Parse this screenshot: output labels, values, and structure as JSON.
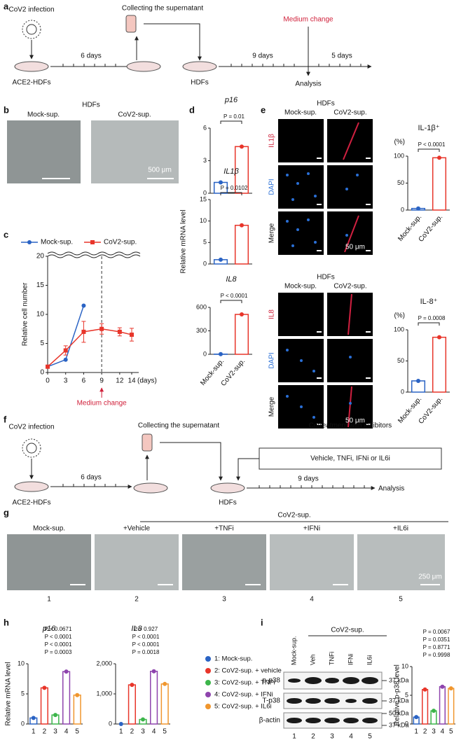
{
  "chart_data": [
    {
      "type": "line",
      "ylabel": "Relative cell number",
      "xlabel": "(days)",
      "annotation": {
        "text": "Medium change",
        "x": 9
      },
      "x": [
        0,
        3,
        6,
        9,
        12,
        14
      ],
      "xlim": [
        0,
        14
      ],
      "xticks": [
        0,
        3,
        6,
        9,
        12,
        14
      ],
      "ylim": [
        0,
        20
      ],
      "yticks": [
        0,
        5,
        10,
        15,
        20
      ],
      "series": [
        {
          "name": "Mock-sup.",
          "color": "#2a63c4",
          "values": [
            1,
            2.2,
            11.5,
            null,
            null,
            null
          ]
        },
        {
          "name": "CoV2-sup.",
          "color": "#e8352a",
          "values": [
            1,
            3.8,
            7,
            7.5,
            7,
            6.5
          ],
          "errors": [
            0,
            0.8,
            1.8,
            0.9,
            0.7,
            1.1
          ]
        }
      ]
    },
    {
      "type": "bar",
      "title": "p16",
      "pvalues": [
        "P = 0.01"
      ],
      "values": [
        1,
        4.3
      ],
      "colors": [
        "#2a63c4",
        "#e8352a"
      ],
      "ylim": [
        0,
        6
      ],
      "yticks": [
        0,
        3,
        6
      ]
    },
    {
      "type": "bar",
      "title": "IL1β",
      "pvalues": [
        "P = 0.0102"
      ],
      "values": [
        1,
        9
      ],
      "colors": [
        "#2a63c4",
        "#e8352a"
      ],
      "ylim": [
        0,
        15
      ],
      "yticks": [
        0,
        5,
        10,
        15
      ]
    },
    {
      "type": "bar",
      "title": "IL8",
      "pvalues": [
        "P < 0.0001"
      ],
      "categories": [
        "Mock-sup.",
        "CoV2-sup."
      ],
      "values": [
        2,
        510
      ],
      "colors": [
        "#2a63c4",
        "#e8352a"
      ],
      "ylim": [
        0,
        600
      ],
      "yticks": [
        0,
        300,
        600
      ]
    },
    {
      "type": "bar",
      "title": "IL-1β⁺",
      "unit": "(%)",
      "pvalues": [
        "P < 0.0001"
      ],
      "categories": [
        "Mock-sup.",
        "CoV2-sup."
      ],
      "values": [
        3,
        97
      ],
      "colors": [
        "#2a63c4",
        "#e8352a"
      ],
      "ylim": [
        0,
        100
      ],
      "yticks": [
        0,
        50,
        100
      ]
    },
    {
      "type": "bar",
      "title": "IL-8⁺",
      "unit": "(%)",
      "pvalues": [
        "P = 0.0008"
      ],
      "categories": [
        "Mock-sup.",
        "CoV2-sup."
      ],
      "values": [
        18,
        88
      ],
      "colors": [
        "#2a63c4",
        "#e8352a"
      ],
      "ylim": [
        0,
        100
      ],
      "yticks": [
        0,
        50,
        100
      ]
    },
    {
      "type": "bar",
      "title": "p16",
      "ylabel": "Relative mRNA level",
      "pvalues": [
        "P = 0.0003",
        "P < 0.0001",
        "P < 0.0001",
        "P = 0.0671"
      ],
      "categories": [
        "1",
        "2",
        "3",
        "4",
        "5"
      ],
      "values": [
        1,
        6,
        1.5,
        8.7,
        4.8
      ],
      "colors": [
        "#2a63c4",
        "#e8352a",
        "#3cb54a",
        "#8e44ad",
        "#f0962e"
      ],
      "ylim": [
        0,
        10
      ],
      "yticks": [
        0,
        5,
        10
      ]
    },
    {
      "type": "bar",
      "title": "IL8",
      "pvalues": [
        "P = 0.0018",
        "P < 0.0001",
        "P < 0.0001",
        "P = 0.927"
      ],
      "categories": [
        "1",
        "2",
        "3",
        "4",
        "5"
      ],
      "values": [
        0,
        1300,
        150,
        1750,
        1330
      ],
      "colors": [
        "#2a63c4",
        "#e8352a",
        "#3cb54a",
        "#8e44ad",
        "#f0962e"
      ],
      "ylim": [
        0,
        2000
      ],
      "yticks": [
        0,
        {
          "value": 1000,
          "label": "1,000"
        },
        {
          "value": 2000,
          "label": "2,000"
        }
      ]
    },
    {
      "type": "bar",
      "ylabel": "Relative p-p38 level",
      "pvalues": [
        "P = 0.9998",
        "P = 0.8771",
        "P = 0.0351",
        "P = 0.0067"
      ],
      "categories": [
        "1",
        "2",
        "3",
        "4",
        "5"
      ],
      "values": [
        1.2,
        6,
        2.3,
        6.5,
        6.2
      ],
      "colors": [
        "#2a63c4",
        "#e8352a",
        "#3cb54a",
        "#8e44ad",
        "#f0962e"
      ],
      "ylim": [
        0,
        10
      ],
      "yticks": [
        0,
        5,
        10
      ]
    }
  ],
  "panels": {
    "a": {
      "label": "a",
      "infection": "CoV2 infection",
      "collecting": "Collecting the supernatant",
      "medium_change": "Medium change",
      "days_1": "6 days",
      "days_2": "9 days",
      "days_3": "5 days",
      "source_cells": "ACE2-HDFs",
      "target_cells": "HDFs",
      "analysis": "Analysis"
    },
    "b": {
      "label": "b",
      "title": "HDFs",
      "left": "Mock-sup.",
      "right": "CoV2-sup.",
      "scale_bar": "500 μm"
    },
    "c": {
      "label": "c"
    },
    "d": {
      "label": "d",
      "ylabel": "Relative mRNA level"
    },
    "e": {
      "label": "e",
      "top": {
        "title": "HDFs",
        "left": "Mock-sup.",
        "right": "CoV2-sup.",
        "rows": [
          "IL1β",
          "DAPI",
          "Merge"
        ],
        "scale_bar": "50 μm"
      },
      "bottom": {
        "title": "HDFs",
        "left": "Mock-sup.",
        "right": "CoV2-sup.",
        "rows": [
          "IL8",
          "DAPI",
          "Merge"
        ],
        "scale_bar": "50 μm"
      }
    },
    "f": {
      "label": "f",
      "infection": "CoV2 infection",
      "collecting": "Collecting the supernatant",
      "cotreatment": "Cotreatment with inhibitors",
      "inhibitors": "Vehicle, TNFi, IFNi or IL6i",
      "days_1": "6 days",
      "days_2": "9 days",
      "source_cells": "ACE2-HDFs",
      "target_cells": "HDFs",
      "analysis": "Analysis"
    },
    "g": {
      "label": "g",
      "group": "CoV2-sup.",
      "conditions": [
        "Mock-sup.",
        "+Vehicle",
        "+TNFi",
        "+IFNi",
        "+IL6i"
      ],
      "numbers": [
        "1",
        "2",
        "3",
        "4",
        "5"
      ],
      "scale_bar": "250 μm"
    },
    "h": {
      "label": "h",
      "legend": [
        {
          "name": "1: Mock-sup.",
          "color": "#2a63c4"
        },
        {
          "name": "2: CoV2-sup. + vehicle",
          "color": "#e8352a"
        },
        {
          "name": "3: CoV2-sup. + TNFi",
          "color": "#3cb54a"
        },
        {
          "name": "4: CoV2-sup. + IFNi",
          "color": "#8e44ad"
        },
        {
          "name": "5: CoV2-sup. + IL6i",
          "color": "#f0962e"
        }
      ]
    },
    "i": {
      "label": "i",
      "group": "CoV2-sup.",
      "lanes": [
        "Mock-sup.",
        "Veh",
        "TNFi",
        "IFNi",
        "IL6i"
      ],
      "rows": [
        "p-p38",
        "T-p38",
        "β-actin"
      ],
      "markers": [
        "37 kDa",
        "37 kDa",
        "50 kDa",
        "37 kDa"
      ],
      "numbers": [
        "1",
        "2",
        "3",
        "4",
        "5"
      ]
    }
  }
}
